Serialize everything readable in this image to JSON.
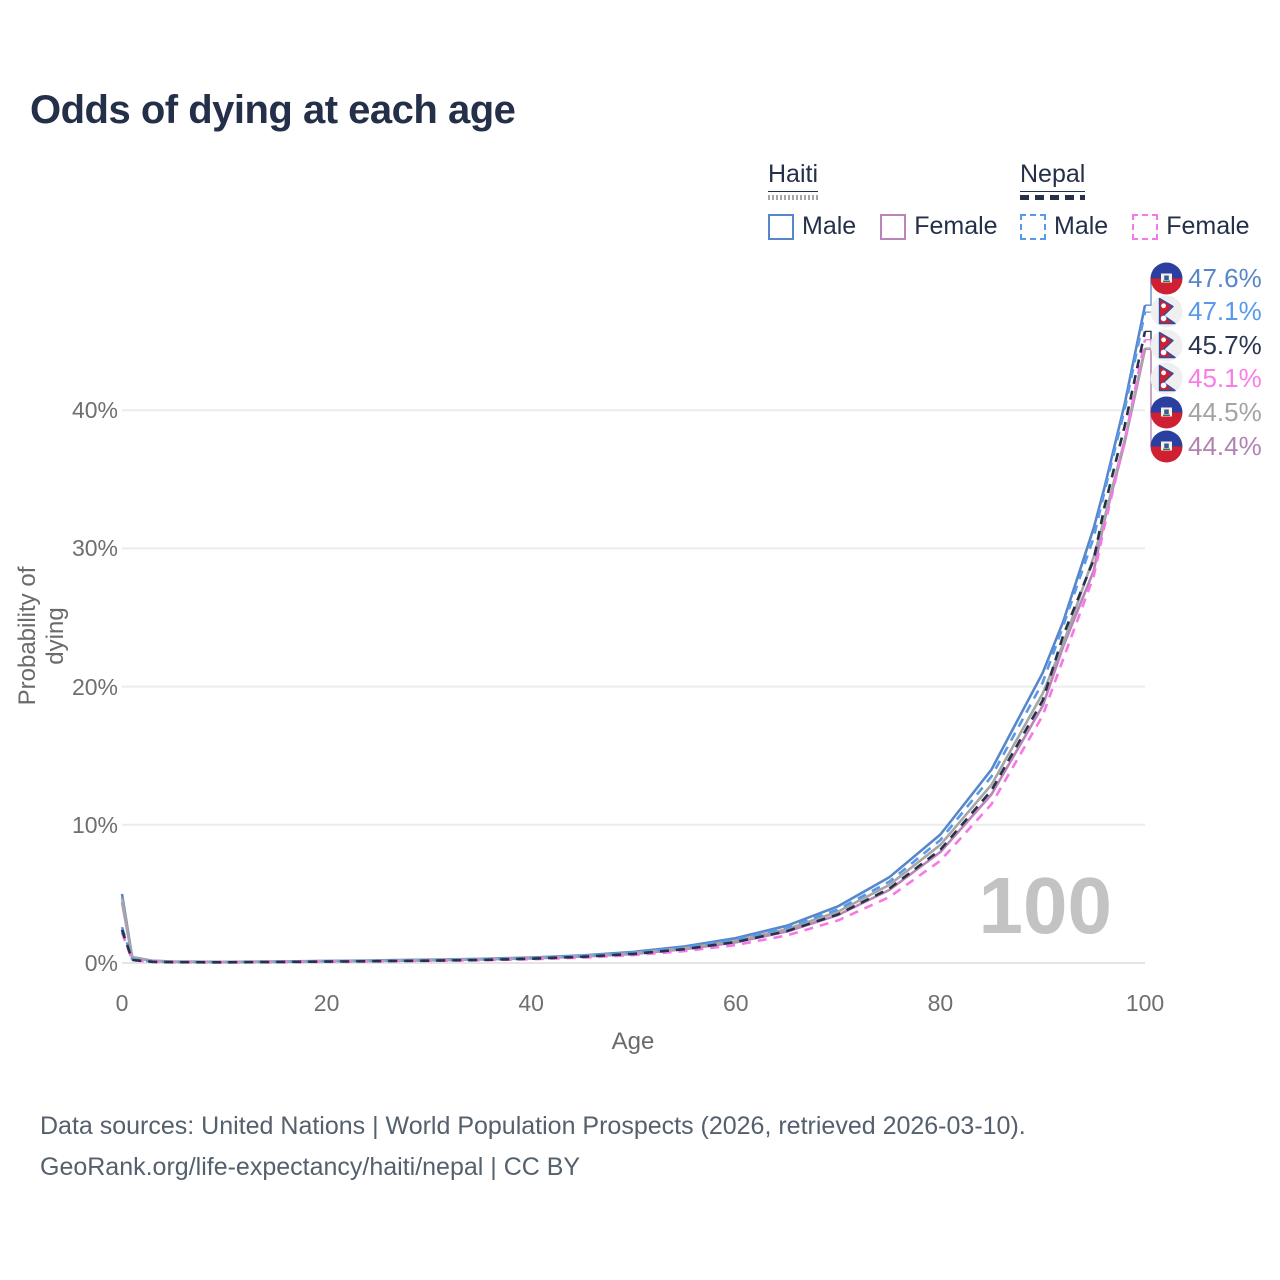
{
  "title": "Odds of dying at each age",
  "watermark": "100",
  "footer": {
    "line1": "Data sources: United Nations | World Population Prospects (2026, retrieved 2026-03-10).",
    "line2": "GeoRank.org/life-expectancy/haiti/nepal | CC BY"
  },
  "legend": {
    "groups": [
      {
        "label": "Haiti",
        "overall_line_color": "#a6a6a6",
        "overall_line_style": "solid",
        "items": [
          {
            "label": "Male",
            "color": "#5886c8",
            "dashed": false
          },
          {
            "label": "Female",
            "color": "#ba84b8",
            "dashed": false
          }
        ]
      },
      {
        "label": "Nepal",
        "overall_line_color": "#273249",
        "overall_line_style": "dashed",
        "items": [
          {
            "label": "Male",
            "color": "#5899ec",
            "dashed": true
          },
          {
            "label": "Female",
            "color": "#f678e8",
            "dashed": true
          }
        ]
      }
    ]
  },
  "chart_data": {
    "type": "line",
    "title": "Odds of dying at each age",
    "xlabel": "Age",
    "ylabel": "Probability of dying",
    "xlim": [
      0,
      100
    ],
    "ylim": [
      0,
      48
    ],
    "x_ticks": [
      0,
      20,
      40,
      60,
      80,
      100
    ],
    "y_ticks": [
      0,
      10,
      20,
      30,
      40
    ],
    "y_tick_suffix": "%",
    "grid": "horizontal",
    "legend_position": "top-right",
    "series": [
      {
        "name": "Haiti Male",
        "country": "haiti",
        "sex": "male",
        "color": "#5886c8",
        "dashed": false,
        "end_value": 47.6,
        "end_label": "47.6%",
        "points": [
          [
            0,
            5.0
          ],
          [
            1,
            0.42
          ],
          [
            3,
            0.16
          ],
          [
            5,
            0.11
          ],
          [
            10,
            0.09
          ],
          [
            15,
            0.11
          ],
          [
            20,
            0.15
          ],
          [
            25,
            0.19
          ],
          [
            30,
            0.24
          ],
          [
            35,
            0.3
          ],
          [
            40,
            0.4
          ],
          [
            45,
            0.55
          ],
          [
            50,
            0.8
          ],
          [
            55,
            1.2
          ],
          [
            60,
            1.8
          ],
          [
            65,
            2.7
          ],
          [
            70,
            4.1
          ],
          [
            75,
            6.2
          ],
          [
            80,
            9.3
          ],
          [
            85,
            14.0
          ],
          [
            90,
            21.0
          ],
          [
            92,
            24.7
          ],
          [
            95,
            31.5
          ],
          [
            96,
            34.3
          ],
          [
            98,
            40.4
          ],
          [
            100,
            47.6
          ]
        ]
      },
      {
        "name": "Haiti Female",
        "country": "haiti",
        "sex": "female",
        "color": "#ba84b8",
        "dashed": false,
        "end_value": 44.4,
        "end_label": "44.4%",
        "points": [
          [
            0,
            4.4
          ],
          [
            1,
            0.38
          ],
          [
            3,
            0.14
          ],
          [
            5,
            0.09
          ],
          [
            10,
            0.08
          ],
          [
            15,
            0.09
          ],
          [
            20,
            0.12
          ],
          [
            25,
            0.15
          ],
          [
            30,
            0.19
          ],
          [
            35,
            0.25
          ],
          [
            40,
            0.33
          ],
          [
            45,
            0.46
          ],
          [
            50,
            0.66
          ],
          [
            55,
            1.0
          ],
          [
            60,
            1.5
          ],
          [
            65,
            2.28
          ],
          [
            70,
            3.47
          ],
          [
            75,
            5.28
          ],
          [
            80,
            8.03
          ],
          [
            85,
            12.2
          ],
          [
            90,
            18.6
          ],
          [
            92,
            22.9
          ],
          [
            95,
            28.4
          ],
          [
            96,
            31.9
          ],
          [
            98,
            37.6
          ],
          [
            100,
            44.4
          ]
        ]
      },
      {
        "name": "Haiti",
        "country": "haiti",
        "sex": "all",
        "color": "#a6a6a6",
        "dashed": false,
        "end_value": 44.5,
        "end_label": "44.5%",
        "points": [
          [
            0,
            4.7
          ],
          [
            1,
            0.4
          ],
          [
            3,
            0.15
          ],
          [
            5,
            0.1
          ],
          [
            10,
            0.08
          ],
          [
            15,
            0.1
          ],
          [
            20,
            0.13
          ],
          [
            25,
            0.17
          ],
          [
            30,
            0.21
          ],
          [
            35,
            0.27
          ],
          [
            40,
            0.36
          ],
          [
            45,
            0.5
          ],
          [
            50,
            0.72
          ],
          [
            55,
            1.08
          ],
          [
            60,
            1.62
          ],
          [
            65,
            2.45
          ],
          [
            70,
            3.72
          ],
          [
            75,
            5.65
          ],
          [
            80,
            8.55
          ],
          [
            85,
            12.9
          ],
          [
            90,
            19.5
          ],
          [
            92,
            23.1
          ],
          [
            95,
            29.4
          ],
          [
            96,
            32.1
          ],
          [
            98,
            37.8
          ],
          [
            100,
            44.5
          ]
        ]
      },
      {
        "name": "Nepal Male",
        "country": "nepal",
        "sex": "male",
        "color": "#5899ec",
        "dashed": true,
        "end_value": 47.1,
        "end_label": "47.1%",
        "points": [
          [
            0,
            2.6
          ],
          [
            1,
            0.25
          ],
          [
            3,
            0.1
          ],
          [
            5,
            0.07
          ],
          [
            10,
            0.06
          ],
          [
            15,
            0.08
          ],
          [
            20,
            0.12
          ],
          [
            25,
            0.15
          ],
          [
            30,
            0.19
          ],
          [
            35,
            0.25
          ],
          [
            40,
            0.36
          ],
          [
            45,
            0.51
          ],
          [
            50,
            0.75
          ],
          [
            55,
            1.12
          ],
          [
            60,
            1.7
          ],
          [
            65,
            2.56
          ],
          [
            70,
            3.88
          ],
          [
            75,
            5.88
          ],
          [
            80,
            8.9
          ],
          [
            85,
            13.5
          ],
          [
            90,
            20.3
          ],
          [
            92,
            24.4
          ],
          [
            95,
            30.8
          ],
          [
            96,
            34.0
          ],
          [
            98,
            40.0
          ],
          [
            100,
            47.1
          ]
        ]
      },
      {
        "name": "Nepal Female",
        "country": "nepal",
        "sex": "female",
        "color": "#f678e8",
        "dashed": true,
        "end_value": 45.1,
        "end_label": "45.1%",
        "points": [
          [
            0,
            2.2
          ],
          [
            1,
            0.2
          ],
          [
            3,
            0.08
          ],
          [
            5,
            0.06
          ],
          [
            10,
            0.05
          ],
          [
            15,
            0.06
          ],
          [
            20,
            0.09
          ],
          [
            25,
            0.12
          ],
          [
            30,
            0.15
          ],
          [
            35,
            0.2
          ],
          [
            40,
            0.27
          ],
          [
            45,
            0.39
          ],
          [
            50,
            0.57
          ],
          [
            55,
            0.86
          ],
          [
            60,
            1.3
          ],
          [
            65,
            2.0
          ],
          [
            70,
            3.08
          ],
          [
            75,
            4.77
          ],
          [
            80,
            7.4
          ],
          [
            85,
            11.5
          ],
          [
            90,
            17.9
          ],
          [
            92,
            22.0
          ],
          [
            95,
            28.0
          ],
          [
            96,
            31.5
          ],
          [
            98,
            37.7
          ],
          [
            100,
            45.1
          ]
        ]
      },
      {
        "name": "Nepal",
        "country": "nepal",
        "sex": "all",
        "color": "#273249",
        "dashed": true,
        "end_value": 45.7,
        "end_label": "45.7%",
        "points": [
          [
            0,
            2.4
          ],
          [
            1,
            0.22
          ],
          [
            3,
            0.09
          ],
          [
            5,
            0.06
          ],
          [
            10,
            0.05
          ],
          [
            15,
            0.07
          ],
          [
            20,
            0.1
          ],
          [
            25,
            0.13
          ],
          [
            30,
            0.17
          ],
          [
            35,
            0.22
          ],
          [
            40,
            0.31
          ],
          [
            45,
            0.45
          ],
          [
            50,
            0.66
          ],
          [
            55,
            1.0
          ],
          [
            60,
            1.52
          ],
          [
            65,
            2.31
          ],
          [
            70,
            3.52
          ],
          [
            75,
            5.38
          ],
          [
            80,
            8.2
          ],
          [
            85,
            12.5
          ],
          [
            90,
            19.0
          ],
          [
            92,
            23.7
          ],
          [
            95,
            29.2
          ],
          [
            96,
            32.9
          ],
          [
            98,
            38.8
          ],
          [
            100,
            45.7
          ]
        ]
      }
    ],
    "end_label_colors": {
      "Haiti Male": "#5886c8",
      "Nepal Male": "#5899ec",
      "Nepal": "#2a3550",
      "Nepal Female": "#fb7ce8",
      "Haiti": "#a3a3a3",
      "Haiti Female": "#b183af"
    },
    "flag_colors": {
      "haiti_blue": "#2b3fa0",
      "haiti_red": "#cf1f33",
      "nepal_crimson": "#d0202f",
      "nepal_border": "#2a4fa2",
      "nepal_bg": "#efefef"
    }
  }
}
